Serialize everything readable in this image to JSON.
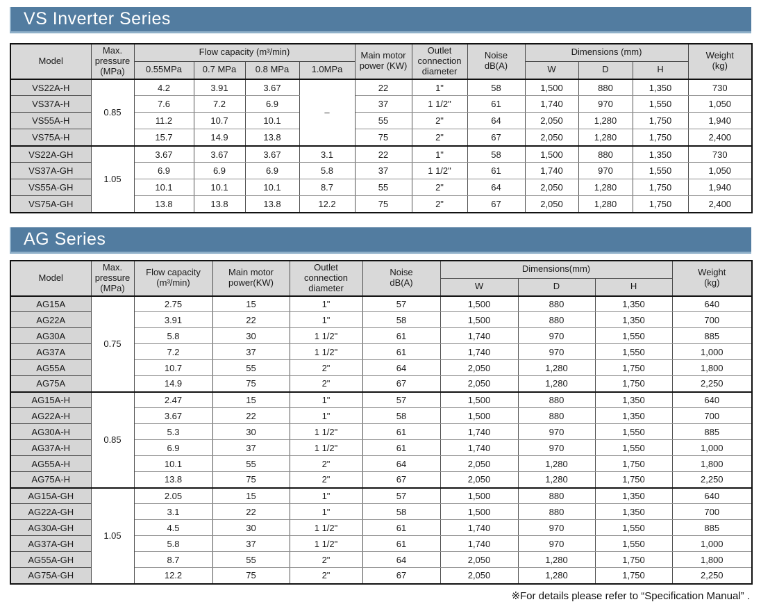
{
  "colors": {
    "title_bar": "#527ca0",
    "header_bg": "#d9d9d9",
    "model_cell_bg": "#d6d6d6"
  },
  "footnote": "※For details please refer to “Specification Manual” .",
  "vs_table": {
    "title": "VS Inverter Series",
    "header": {
      "model": "Model",
      "pressure": "Max.\npressure\n(MPa)",
      "flow_group": "Flow capacity (m³/min)",
      "flow_cols": [
        "0.55MPa",
        "0.7 MPa",
        "0.8 MPa",
        "1.0MPa"
      ],
      "power": "Main motor\npower (KW)",
      "outlet": "Outlet\nconnection\ndiameter",
      "noise": "Noise\ndB(A)",
      "dimensions": "Dimensions (mm)",
      "dim_cols": [
        "W",
        "D",
        "H"
      ],
      "weight": "Weight\n(kg)"
    },
    "groups": [
      {
        "pressure": "0.85",
        "dash": "–",
        "rows": [
          {
            "model": "VS22A-H",
            "flows": [
              "4.2",
              "3.91",
              "3.67"
            ],
            "rest": [
              "22",
              "1\"",
              "58",
              "1,500",
              "880",
              "1,350",
              "730"
            ]
          },
          {
            "model": "VS37A-H",
            "flows": [
              "7.6",
              "7.2",
              "6.9"
            ],
            "rest": [
              "37",
              "1 1/2\"",
              "61",
              "1,740",
              "970",
              "1,550",
              "1,050"
            ]
          },
          {
            "model": "VS55A-H",
            "flows": [
              "11.2",
              "10.7",
              "10.1"
            ],
            "rest": [
              "55",
              "2\"",
              "64",
              "2,050",
              "1,280",
              "1,750",
              "1,940"
            ]
          },
          {
            "model": "VS75A-H",
            "flows": [
              "15.7",
              "14.9",
              "13.8"
            ],
            "rest": [
              "75",
              "2\"",
              "67",
              "2,050",
              "1,280",
              "1,750",
              "2,400"
            ]
          }
        ]
      },
      {
        "pressure": "1.05",
        "dash": null,
        "rows": [
          {
            "model": "VS22A-GH",
            "flows": [
              "3.67",
              "3.67",
              "3.67",
              "3.1"
            ],
            "rest": [
              "22",
              "1\"",
              "58",
              "1,500",
              "880",
              "1,350",
              "730"
            ]
          },
          {
            "model": "VS37A-GH",
            "flows": [
              "6.9",
              "6.9",
              "6.9",
              "5.8"
            ],
            "rest": [
              "37",
              "1 1/2\"",
              "61",
              "1,740",
              "970",
              "1,550",
              "1,050"
            ]
          },
          {
            "model": "VS55A-GH",
            "flows": [
              "10.1",
              "10.1",
              "10.1",
              "8.7"
            ],
            "rest": [
              "55",
              "2\"",
              "64",
              "2,050",
              "1,280",
              "1,750",
              "1,940"
            ]
          },
          {
            "model": "VS75A-GH",
            "flows": [
              "13.8",
              "13.8",
              "13.8",
              "12.2"
            ],
            "rest": [
              "75",
              "2\"",
              "67",
              "2,050",
              "1,280",
              "1,750",
              "2,400"
            ]
          }
        ]
      }
    ]
  },
  "ag_table": {
    "title": "AG Series",
    "header": {
      "model": "Model",
      "pressure": "Max.\npressure\n(MPa)",
      "flow": "Flow capacity\n(m³/min)",
      "power": "Main motor\npower(KW)",
      "outlet": "Outlet\nconnection\ndiameter",
      "noise": "Noise\ndB(A)",
      "dimensions": "Dimensions(mm)",
      "dim_cols": [
        "W",
        "D",
        "H"
      ],
      "weight": "Weight\n(kg)"
    },
    "groups": [
      {
        "pressure": "0.75",
        "dash": null,
        "rows": [
          {
            "model": "AG15A",
            "flows": [
              "2.75"
            ],
            "rest": [
              "15",
              "1\"",
              "57",
              "1,500",
              "880",
              "1,350",
              "640"
            ]
          },
          {
            "model": "AG22A",
            "flows": [
              "3.91"
            ],
            "rest": [
              "22",
              "1\"",
              "58",
              "1,500",
              "880",
              "1,350",
              "700"
            ]
          },
          {
            "model": "AG30A",
            "flows": [
              "5.8"
            ],
            "rest": [
              "30",
              "1 1/2\"",
              "61",
              "1,740",
              "970",
              "1,550",
              "885"
            ]
          },
          {
            "model": "AG37A",
            "flows": [
              "7.2"
            ],
            "rest": [
              "37",
              "1 1/2\"",
              "61",
              "1,740",
              "970",
              "1,550",
              "1,000"
            ]
          },
          {
            "model": "AG55A",
            "flows": [
              "10.7"
            ],
            "rest": [
              "55",
              "2\"",
              "64",
              "2,050",
              "1,280",
              "1,750",
              "1,800"
            ]
          },
          {
            "model": "AG75A",
            "flows": [
              "14.9"
            ],
            "rest": [
              "75",
              "2\"",
              "67",
              "2,050",
              "1,280",
              "1,750",
              "2,250"
            ]
          }
        ]
      },
      {
        "pressure": "0.85",
        "dash": null,
        "rows": [
          {
            "model": "AG15A-H",
            "flows": [
              "2.47"
            ],
            "rest": [
              "15",
              "1\"",
              "57",
              "1,500",
              "880",
              "1,350",
              "640"
            ]
          },
          {
            "model": "AG22A-H",
            "flows": [
              "3.67"
            ],
            "rest": [
              "22",
              "1\"",
              "58",
              "1,500",
              "880",
              "1,350",
              "700"
            ]
          },
          {
            "model": "AG30A-H",
            "flows": [
              "5.3"
            ],
            "rest": [
              "30",
              "1 1/2\"",
              "61",
              "1,740",
              "970",
              "1,550",
              "885"
            ]
          },
          {
            "model": "AG37A-H",
            "flows": [
              "6.9"
            ],
            "rest": [
              "37",
              "1 1/2\"",
              "61",
              "1,740",
              "970",
              "1,550",
              "1,000"
            ]
          },
          {
            "model": "AG55A-H",
            "flows": [
              "10.1"
            ],
            "rest": [
              "55",
              "2\"",
              "64",
              "2,050",
              "1,280",
              "1,750",
              "1,800"
            ]
          },
          {
            "model": "AG75A-H",
            "flows": [
              "13.8"
            ],
            "rest": [
              "75",
              "2\"",
              "67",
              "2,050",
              "1,280",
              "1,750",
              "2,250"
            ]
          }
        ]
      },
      {
        "pressure": "1.05",
        "dash": null,
        "rows": [
          {
            "model": "AG15A-GH",
            "flows": [
              "2.05"
            ],
            "rest": [
              "15",
              "1\"",
              "57",
              "1,500",
              "880",
              "1,350",
              "640"
            ]
          },
          {
            "model": "AG22A-GH",
            "flows": [
              "3.1"
            ],
            "rest": [
              "22",
              "1\"",
              "58",
              "1,500",
              "880",
              "1,350",
              "700"
            ]
          },
          {
            "model": "AG30A-GH",
            "flows": [
              "4.5"
            ],
            "rest": [
              "30",
              "1 1/2\"",
              "61",
              "1,740",
              "970",
              "1,550",
              "885"
            ]
          },
          {
            "model": "AG37A-GH",
            "flows": [
              "5.8"
            ],
            "rest": [
              "37",
              "1 1/2\"",
              "61",
              "1,740",
              "970",
              "1,550",
              "1,000"
            ]
          },
          {
            "model": "AG55A-GH",
            "flows": [
              "8.7"
            ],
            "rest": [
              "55",
              "2\"",
              "64",
              "2,050",
              "1,280",
              "1,750",
              "1,800"
            ]
          },
          {
            "model": "AG75A-GH",
            "flows": [
              "12.2"
            ],
            "rest": [
              "75",
              "2\"",
              "67",
              "2,050",
              "1,280",
              "1,750",
              "2,250"
            ]
          }
        ]
      }
    ]
  }
}
